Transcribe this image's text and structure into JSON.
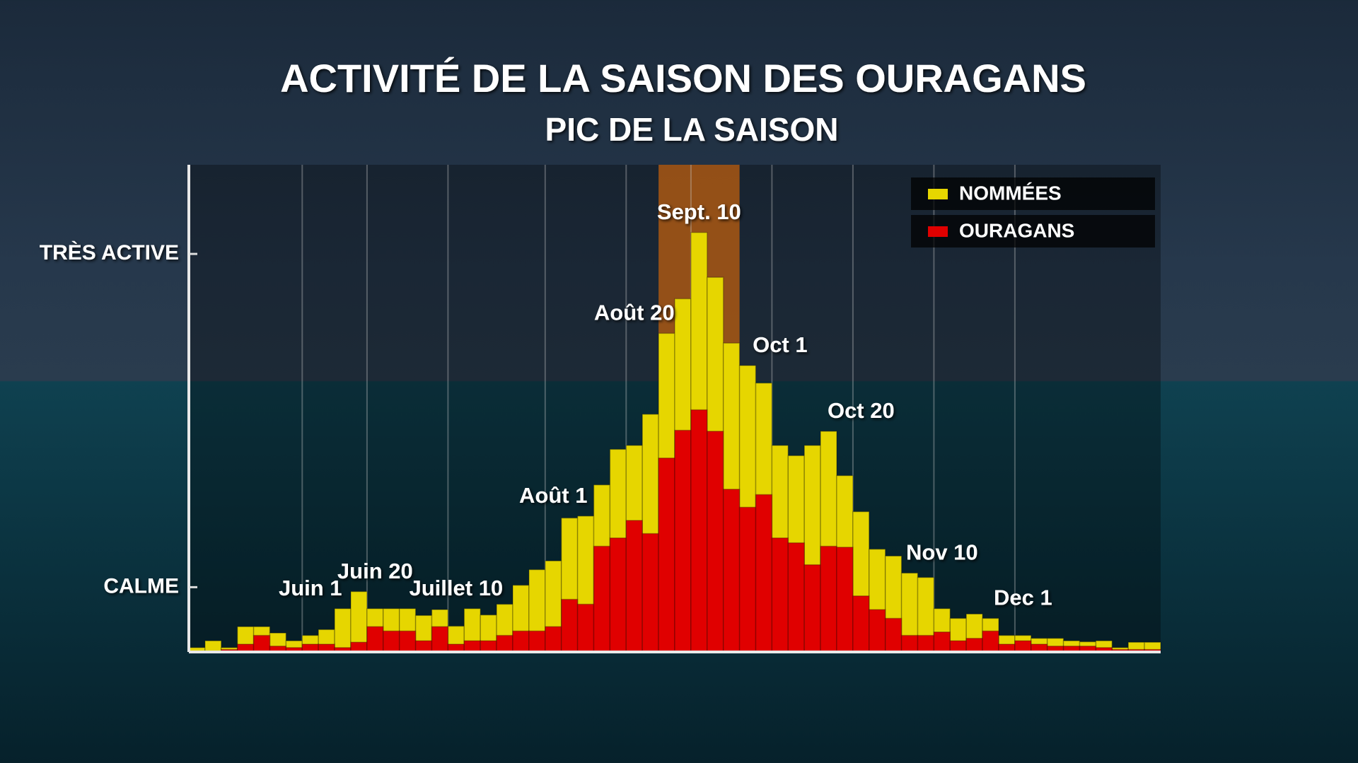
{
  "chart_data": {
    "type": "bar",
    "title": "ACTIVITÉ DE LA SAISON DES OURAGANS",
    "subtitle": "PIC DE LA SAISON",
    "categories": [
      null,
      null,
      null,
      null,
      null,
      null,
      null,
      "Juin 1",
      null,
      null,
      null,
      "Juin 20",
      null,
      null,
      null,
      null,
      "Juillet 10",
      null,
      null,
      null,
      null,
      null,
      "Août 1",
      null,
      null,
      null,
      null,
      "Août 20",
      null,
      null,
      null,
      "Sept. 10",
      null,
      null,
      null,
      null,
      "Oct 1",
      null,
      null,
      null,
      null,
      "Oct 20",
      null,
      null,
      null,
      null,
      "Nov 10",
      null,
      null,
      null,
      null,
      "Dec 1",
      null,
      null,
      null,
      null,
      null,
      null,
      null,
      null
    ],
    "series": [
      {
        "name": "NOMMÉES",
        "color": "#e6d600",
        "values": [
          0.9,
          2.3,
          0.9,
          5.2,
          5.2,
          3.9,
          2.3,
          3.4,
          4.6,
          8.9,
          12.4,
          8.9,
          8.9,
          8.9,
          7.5,
          8.7,
          5.3,
          8.9,
          7.6,
          9.8,
          13.7,
          16.9,
          18.7,
          27.5,
          27.9,
          34.3,
          41.6,
          42.4,
          48.8,
          65.4,
          72.5,
          86.1,
          76.9,
          63.4,
          58.8,
          55.2,
          42.4,
          40.3,
          42.4,
          45.3,
          36.2,
          28.8,
          21.1,
          19.7,
          16.2,
          15.3,
          8.9,
          6.9,
          7.8,
          6.9,
          3.4,
          3.4,
          2.8,
          2.8,
          2.3,
          2.1,
          2.3,
          0.9,
          2.0,
          2.0
        ]
      },
      {
        "name": "OURAGANS",
        "color": "#e00000",
        "values": [
          0.2,
          0.2,
          0.5,
          1.6,
          3.4,
          1.2,
          0.9,
          1.6,
          1.6,
          0.9,
          2.0,
          5.2,
          4.3,
          4.3,
          2.3,
          5.2,
          1.6,
          2.3,
          2.3,
          3.4,
          4.3,
          4.3,
          5.2,
          10.8,
          9.8,
          21.7,
          23.4,
          27.0,
          24.3,
          39.8,
          45.5,
          49.7,
          45.3,
          33.4,
          29.7,
          32.3,
          23.4,
          22.4,
          17.9,
          21.7,
          21.5,
          11.5,
          8.7,
          6.9,
          3.4,
          3.4,
          4.1,
          2.3,
          2.8,
          4.3,
          1.6,
          2.3,
          1.6,
          1.2,
          1.2,
          1.2,
          0.9,
          0.5,
          0.5,
          0.5
        ]
      }
    ],
    "ylim": [
      0,
      100
    ],
    "yticks": [
      {
        "value": 13.3,
        "label": "CALME"
      },
      {
        "value": 81.7,
        "label": "TRÈS ACTIVE"
      }
    ],
    "highlight": {
      "from": 29,
      "to": 33
    },
    "legend": "top-right",
    "grid": true
  }
}
